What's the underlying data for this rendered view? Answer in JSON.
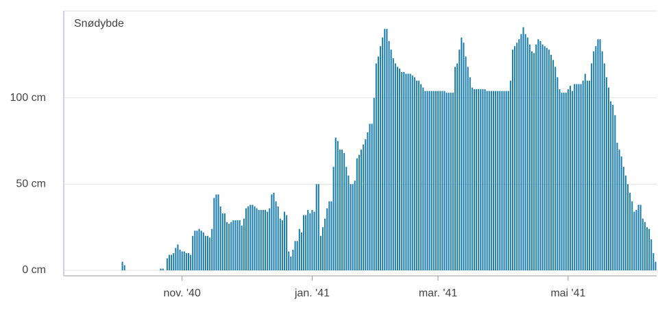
{
  "chart_data": {
    "type": "bar",
    "title": "Snødybde",
    "categories": [
      null,
      null,
      null,
      null,
      null,
      null,
      null,
      null,
      null,
      null,
      null,
      null,
      null,
      null,
      null,
      null,
      null,
      null,
      null,
      null,
      null,
      null,
      null,
      null,
      null,
      null,
      null,
      null,
      null,
      null,
      null,
      null,
      null,
      null,
      null,
      null,
      null,
      null,
      null,
      null,
      null,
      null,
      null,
      null,
      null,
      null,
      null,
      null,
      null,
      null,
      null,
      null,
      null,
      null,
      null,
      "nov. '40",
      null,
      null,
      null,
      null,
      null,
      null,
      null,
      null,
      null,
      null,
      null,
      null,
      null,
      null,
      null,
      null,
      null,
      null,
      null,
      null,
      null,
      null,
      null,
      null,
      null,
      null,
      null,
      null,
      null,
      null,
      null,
      null,
      null,
      null,
      null,
      null,
      null,
      null,
      null,
      null,
      null,
      null,
      null,
      null,
      null,
      null,
      null,
      null,
      null,
      null,
      null,
      null,
      null,
      null,
      null,
      null,
      null,
      null,
      null,
      null,
      "jan. '41",
      null,
      null,
      null,
      null,
      null,
      null,
      null,
      null,
      null,
      null,
      null,
      null,
      null,
      null,
      null,
      null,
      null,
      null,
      null,
      null,
      null,
      null,
      null,
      null,
      null,
      null,
      null,
      null,
      null,
      null,
      null,
      null,
      null,
      null,
      null,
      null,
      null,
      null,
      null,
      null,
      null,
      null,
      null,
      null,
      null,
      null,
      null,
      null,
      null,
      null,
      null,
      null,
      null,
      null,
      null,
      null,
      null,
      null,
      "mar. '41",
      null,
      null,
      null,
      null,
      null,
      null,
      null,
      null,
      null,
      null,
      null,
      null,
      null,
      null,
      null,
      null,
      null,
      null,
      null,
      null,
      null,
      null,
      null,
      null,
      null,
      null,
      null,
      null,
      null,
      null,
      null,
      null,
      null,
      null,
      null,
      null,
      null,
      null,
      null,
      null,
      null,
      null,
      null,
      null,
      null,
      null,
      null,
      null,
      null,
      null,
      null,
      null,
      null,
      null,
      null,
      null,
      null,
      null,
      null,
      null,
      "mai '41",
      null,
      null,
      null,
      null,
      null,
      null,
      null,
      null,
      null,
      null,
      null,
      null,
      null,
      null,
      null,
      null,
      null,
      null,
      null,
      null,
      null,
      null,
      null,
      null,
      null,
      null,
      null,
      null,
      null,
      null,
      null,
      null,
      null,
      null,
      null,
      null,
      null,
      null,
      null,
      null,
      null
    ],
    "values": [
      0,
      0,
      0,
      0,
      0,
      0,
      0,
      0,
      0,
      0,
      0,
      0,
      0,
      0,
      0,
      0,
      0,
      0,
      0,
      0,
      0,
      0,
      0,
      0,
      0,
      0,
      0,
      5,
      3,
      0,
      0,
      0,
      0,
      0,
      0,
      0,
      0,
      0,
      0,
      0,
      0,
      0,
      0,
      0,
      0,
      1,
      1,
      0,
      7,
      9,
      9,
      10,
      13,
      15,
      12,
      11,
      11,
      10,
      10,
      9,
      20,
      23,
      23,
      24,
      23,
      22,
      20,
      20,
      19,
      24,
      42,
      44,
      44,
      37,
      33,
      33,
      28,
      27,
      28,
      29,
      29,
      29,
      29,
      26,
      30,
      36,
      37,
      38,
      38,
      37,
      36,
      35,
      35,
      35,
      35,
      34,
      36,
      44,
      45,
      40,
      37,
      30,
      29,
      34,
      32,
      11,
      8,
      12,
      17,
      17,
      24,
      22,
      32,
      32,
      35,
      33,
      35,
      34,
      50,
      50,
      20,
      25,
      30,
      36,
      40,
      40,
      60,
      77,
      75,
      70,
      70,
      68,
      60,
      55,
      50,
      50,
      52,
      65,
      67,
      70,
      73,
      76,
      80,
      85,
      85,
      100,
      120,
      124,
      130,
      135,
      140,
      140,
      133,
      128,
      123,
      120,
      118,
      117,
      115,
      115,
      114,
      114,
      114,
      113,
      112,
      110,
      110,
      108,
      106,
      104,
      104,
      104,
      104,
      104,
      104,
      104,
      104,
      104,
      104,
      103,
      103,
      103,
      103,
      118,
      120,
      128,
      135,
      132,
      124,
      118,
      112,
      106,
      105,
      105,
      105,
      105,
      105,
      105,
      104,
      104,
      104,
      104,
      104,
      104,
      104,
      104,
      104,
      104,
      104,
      110,
      128,
      130,
      132,
      134,
      137,
      141,
      137,
      135,
      131,
      127,
      126,
      131,
      134,
      133,
      131,
      130,
      129,
      128,
      125,
      122,
      118,
      112,
      105,
      103,
      103,
      103,
      105,
      107,
      104,
      108,
      108,
      108,
      108,
      110,
      114,
      110,
      110,
      120,
      127,
      130,
      134,
      134,
      127,
      120,
      112,
      106,
      98,
      96,
      90,
      74,
      70,
      66,
      60,
      55,
      50,
      45,
      40,
      34,
      35,
      38,
      38,
      30,
      28,
      25,
      24,
      18,
      10,
      5
    ],
    "color": "#1d7eab",
    "ylim": [
      0,
      150
    ],
    "yticks": [
      {
        "value": 0,
        "label": "0 cm"
      },
      {
        "value": 50,
        "label": "50 cm"
      },
      {
        "value": 100,
        "label": "100 cm"
      }
    ],
    "grid": true
  }
}
